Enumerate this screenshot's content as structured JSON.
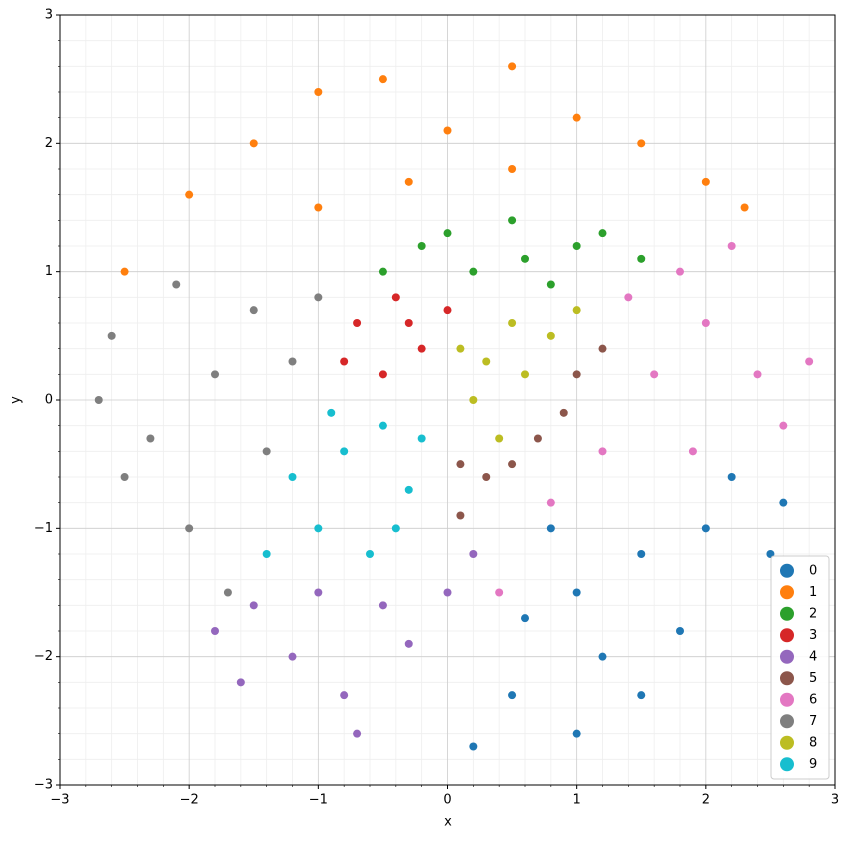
{
  "chart_data": {
    "type": "scatter",
    "xlabel": "x",
    "ylabel": "y",
    "xlim": [
      -3,
      3
    ],
    "ylim": [
      -3,
      3
    ],
    "xticks": [
      {
        "value": -3,
        "label": "−3"
      },
      {
        "value": -2,
        "label": "−2"
      },
      {
        "value": -1,
        "label": "−1"
      },
      0,
      1,
      2,
      3
    ],
    "yticks": [
      {
        "value": -3,
        "label": "−3"
      },
      {
        "value": -2,
        "label": "−2"
      },
      {
        "value": -1,
        "label": "−1"
      },
      0,
      1,
      2,
      3
    ],
    "xminorticks": [
      -2.8,
      -2.6,
      -2.4,
      -2.2,
      -1.8,
      -1.6,
      -1.4,
      -1.2,
      -0.8,
      -0.6,
      -0.4,
      -0.2,
      0.2,
      0.4,
      0.6,
      0.8,
      1.2,
      1.4,
      1.6,
      1.8,
      2.2,
      2.4,
      2.6,
      2.8
    ],
    "yminorticks": [
      -2.8,
      -2.6,
      -2.4,
      -2.2,
      -1.8,
      -1.6,
      -1.4,
      -1.2,
      -0.8,
      -0.6,
      -0.4,
      -0.2,
      0.2,
      0.4,
      0.6,
      0.8,
      1.2,
      1.4,
      1.6,
      1.8,
      2.2,
      2.4,
      2.6,
      2.8
    ],
    "grid": true,
    "legend": "lower right",
    "series": [
      {
        "name": "0",
        "color": "#1f77b4",
        "x": [
          1.0,
          1.5,
          2.0,
          1.2,
          0.5,
          1.8,
          2.5,
          0.8,
          2.2,
          1.0,
          0.2,
          1.5,
          2.6,
          0.6
        ],
        "y": [
          -1.5,
          -1.2,
          -1.0,
          -2.0,
          -2.3,
          -1.8,
          -1.2,
          -1.0,
          -0.6,
          -2.6,
          -2.7,
          -2.3,
          -0.8,
          -1.7
        ]
      },
      {
        "name": "1",
        "color": "#ff7f0e",
        "x": [
          -2.5,
          -2.0,
          -1.5,
          -1.0,
          -0.5,
          0,
          0.5,
          1.0,
          1.5,
          2.0,
          2.3,
          -1.0,
          0.5,
          -0.3
        ],
        "y": [
          1.0,
          1.6,
          2.0,
          2.4,
          2.5,
          2.1,
          2.6,
          2.2,
          2.0,
          1.7,
          1.5,
          1.5,
          1.8,
          1.7
        ]
      },
      {
        "name": "2",
        "color": "#2ca02c",
        "x": [
          -0.5,
          0,
          0.5,
          1.0,
          1.5,
          0.2,
          -0.2,
          0.8,
          1.2,
          0.6
        ],
        "y": [
          1.0,
          1.3,
          1.4,
          1.2,
          1.1,
          1.0,
          1.2,
          0.9,
          1.3,
          1.1
        ]
      },
      {
        "name": "3",
        "color": "#d62728",
        "x": [
          -0.7,
          -0.4,
          -0.2,
          -0.5,
          0,
          -0.8,
          -0.3
        ],
        "y": [
          0.6,
          0.8,
          0.4,
          0.2,
          0.7,
          0.3,
          0.6
        ]
      },
      {
        "name": "4",
        "color": "#9467bd",
        "x": [
          -1.8,
          -1.2,
          -0.8,
          -0.5,
          -1.5,
          0.2,
          -0.3,
          -1.0,
          -0.7,
          0,
          -1.6
        ],
        "y": [
          -1.8,
          -2.0,
          -2.3,
          -1.6,
          -1.6,
          -1.2,
          -1.9,
          -1.5,
          -2.6,
          -1.5,
          -2.2
        ]
      },
      {
        "name": "5",
        "color": "#8c564b",
        "x": [
          0.1,
          0.5,
          0.9,
          1.2,
          0.3,
          1.0,
          0.7,
          0.1
        ],
        "y": [
          -0.9,
          -0.5,
          -0.1,
          0.4,
          -0.6,
          0.2,
          -0.3,
          -0.5
        ]
      },
      {
        "name": "6",
        "color": "#e377c2",
        "x": [
          0.8,
          1.2,
          1.6,
          2.0,
          2.4,
          1.8,
          2.6,
          1.4,
          0.4,
          2.2,
          2.8,
          1.9
        ],
        "y": [
          -0.8,
          -0.4,
          0.2,
          0.6,
          0.2,
          1.0,
          -0.2,
          0.8,
          -1.5,
          1.2,
          0.3,
          -0.4
        ]
      },
      {
        "name": "7",
        "color": "#7f7f7f",
        "x": [
          -2.6,
          -2.3,
          -2.0,
          -1.8,
          -1.5,
          -1.2,
          -2.5,
          -1.7,
          -1.0,
          -2.1,
          -2.7,
          -1.4
        ],
        "y": [
          0.5,
          -0.3,
          -1.0,
          0.2,
          0.7,
          0.3,
          -0.6,
          -1.5,
          0.8,
          0.9,
          0.0,
          -0.4
        ]
      },
      {
        "name": "8",
        "color": "#bcbd22",
        "x": [
          0.3,
          0.5,
          0.8,
          0.2,
          0.6,
          1.0,
          0.4,
          0.1
        ],
        "y": [
          0.3,
          0.6,
          0.5,
          0.0,
          0.2,
          0.7,
          -0.3,
          0.4
        ]
      },
      {
        "name": "9",
        "color": "#17becf",
        "x": [
          -1.2,
          -0.8,
          -0.5,
          -0.3,
          -1.0,
          -0.6,
          -1.4,
          -0.2,
          -0.9,
          -0.4
        ],
        "y": [
          -0.6,
          -0.4,
          -0.2,
          -0.7,
          -1.0,
          -1.2,
          -1.2,
          -0.3,
          -0.1,
          -1.0
        ]
      }
    ]
  }
}
